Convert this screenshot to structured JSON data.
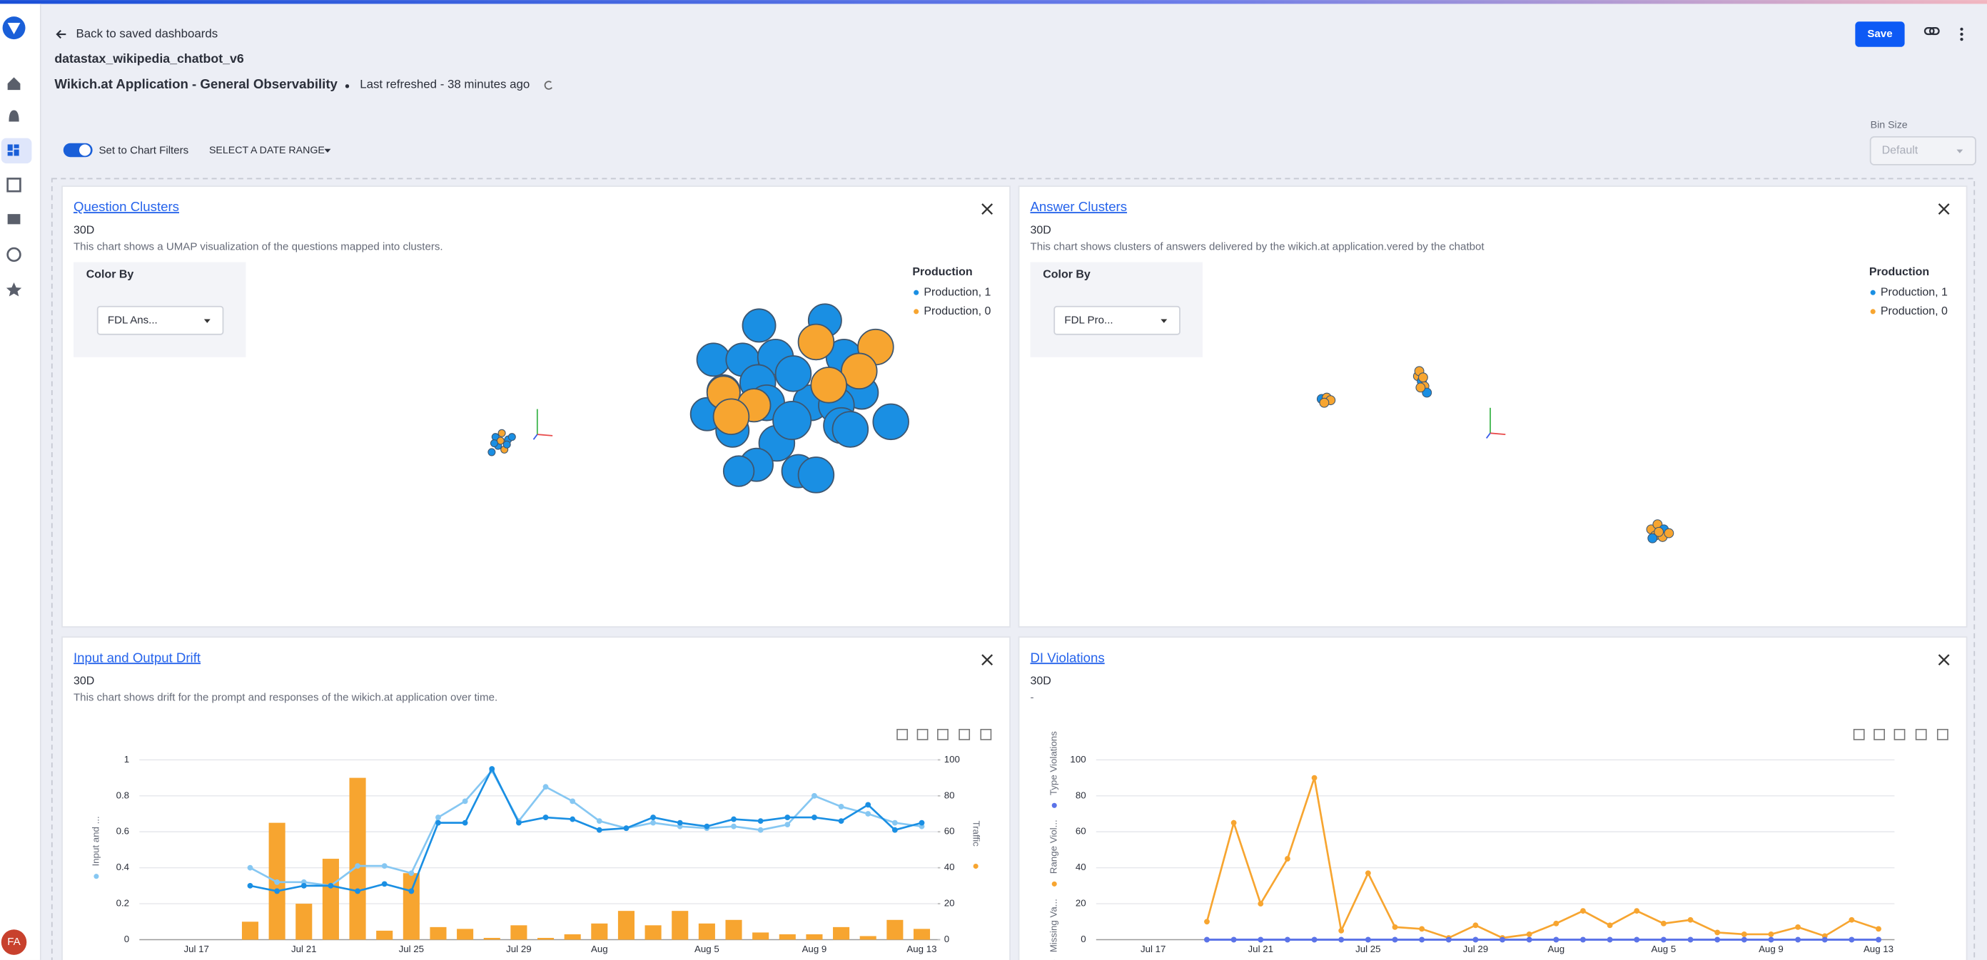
{
  "header": {
    "back": "Back to saved dashboards",
    "project": "datastax_wikipedia_chatbot_v6",
    "title": "Wikich.at Application - General Observability",
    "refreshed": "Last refreshed - 38 minutes ago",
    "save": "Save"
  },
  "filters": {
    "toggle": "Set to Chart Filters",
    "date_range": "SELECT A DATE RANGE",
    "bin_size_label": "Bin Size",
    "bin_size": "Default"
  },
  "avatar": "FA",
  "clusters": [
    {
      "title": "Question Clusters",
      "period": "30D",
      "description": "This chart shows a UMAP visualization of the questions mapped into clusters.",
      "color_by": "Color By",
      "selected": "FDL Ans...",
      "legend_title": "Production",
      "legend": [
        {
          "name": "Production, 1",
          "color": "#1a8fe3"
        },
        {
          "name": "Production, 0",
          "color": "#f7a530"
        }
      ]
    },
    {
      "title": "Answer Clusters",
      "period": "30D",
      "description": "This chart shows clusters of answers delivered by the wikich.at application.vered by the chatbot",
      "color_by": "Color By",
      "selected": "FDL Pro...",
      "legend_title": "Production",
      "legend": [
        {
          "name": "Production, 1",
          "color": "#1a8fe3"
        },
        {
          "name": "Production, 0",
          "color": "#f7a530"
        }
      ]
    }
  ],
  "chart_data": [
    {
      "type": "bar",
      "title": "Input and Output Drift",
      "period": "30D",
      "description": "This chart shows drift for the prompt and responses of the wikich.at application over time.",
      "categories": [
        "Jul 17",
        null,
        null,
        null,
        "Jul 21",
        null,
        null,
        null,
        "Jul 25",
        null,
        null,
        null,
        "Jul 29",
        null,
        null,
        "Aug",
        null,
        null,
        null,
        "Aug 5",
        null,
        null,
        null,
        "Aug 9",
        null,
        null,
        null,
        "Aug 13"
      ],
      "series": [
        {
          "type": "bar",
          "axis": "y2",
          "color": "#f7a530",
          "values": [
            null,
            null,
            10,
            65,
            20,
            45,
            90,
            5,
            37,
            7,
            6,
            1,
            8,
            1,
            3,
            9,
            16,
            8,
            16,
            9,
            11,
            4,
            3,
            3,
            7,
            2,
            11,
            6
          ]
        },
        {
          "type": "line",
          "color": "#86c7f2",
          "values": [
            null,
            null,
            0.4,
            0.32,
            0.32,
            0.3,
            0.41,
            0.41,
            0.37,
            0.68,
            0.77,
            0.94,
            0.66,
            0.85,
            0.77,
            0.66,
            0.62,
            0.65,
            0.63,
            0.62,
            0.63,
            0.61,
            0.64,
            0.8,
            0.74,
            0.7,
            0.65,
            0.63
          ]
        },
        {
          "type": "line",
          "color": "#1a8fe3",
          "values": [
            null,
            null,
            0.3,
            0.27,
            0.3,
            0.3,
            0.27,
            0.31,
            0.27,
            0.65,
            0.65,
            0.95,
            0.65,
            0.68,
            0.67,
            0.61,
            0.62,
            0.68,
            0.65,
            0.63,
            0.67,
            0.66,
            0.68,
            0.68,
            0.66,
            0.75,
            0.61,
            0.65
          ]
        }
      ],
      "ylabel": "Input and ...",
      "y2label": "Traffic",
      "ylim": [
        0,
        1
      ],
      "yticks": [
        0,
        0.2,
        0.4,
        0.6,
        0.8,
        1
      ],
      "y2lim": [
        0,
        100
      ],
      "y2ticks": [
        0,
        20,
        40,
        60,
        80,
        100
      ],
      "grid": true
    },
    {
      "type": "line",
      "title": "DI Violations",
      "period": "30D",
      "description": "-",
      "categories": [
        "Jul 17",
        null,
        null,
        null,
        "Jul 21",
        null,
        null,
        null,
        "Jul 25",
        null,
        null,
        null,
        "Jul 29",
        null,
        null,
        "Aug",
        null,
        null,
        null,
        "Aug 5",
        null,
        null,
        null,
        "Aug 9",
        null,
        null,
        null,
        "Aug 13"
      ],
      "series": [
        {
          "name": "Missing Va...",
          "color": "#5b73e8",
          "values": [
            null,
            null,
            0,
            0,
            0,
            0,
            0,
            0,
            0,
            0,
            0,
            0,
            0,
            0,
            0,
            0,
            0,
            0,
            0,
            0,
            0,
            0,
            0,
            0,
            0,
            0,
            0,
            0
          ]
        },
        {
          "name": "Range Viol...",
          "color": "#f7a530",
          "values": [
            null,
            null,
            10,
            65,
            20,
            45,
            90,
            5,
            37,
            7,
            6,
            1,
            8,
            1,
            3,
            9,
            16,
            8,
            16,
            9,
            11,
            4,
            3,
            3,
            7,
            2,
            11,
            6
          ]
        },
        {
          "name": "Type Violations",
          "color": "#5b73e8",
          "values": [
            null,
            null,
            0,
            0,
            0,
            0,
            0,
            0,
            0,
            0,
            0,
            0,
            0,
            0,
            0,
            0,
            0,
            0,
            0,
            0,
            0,
            0,
            0,
            0,
            0,
            0,
            0,
            0
          ]
        }
      ],
      "ylim": [
        0,
        100
      ],
      "yticks": [
        0,
        20,
        40,
        60,
        80,
        100
      ],
      "grid": true
    }
  ]
}
